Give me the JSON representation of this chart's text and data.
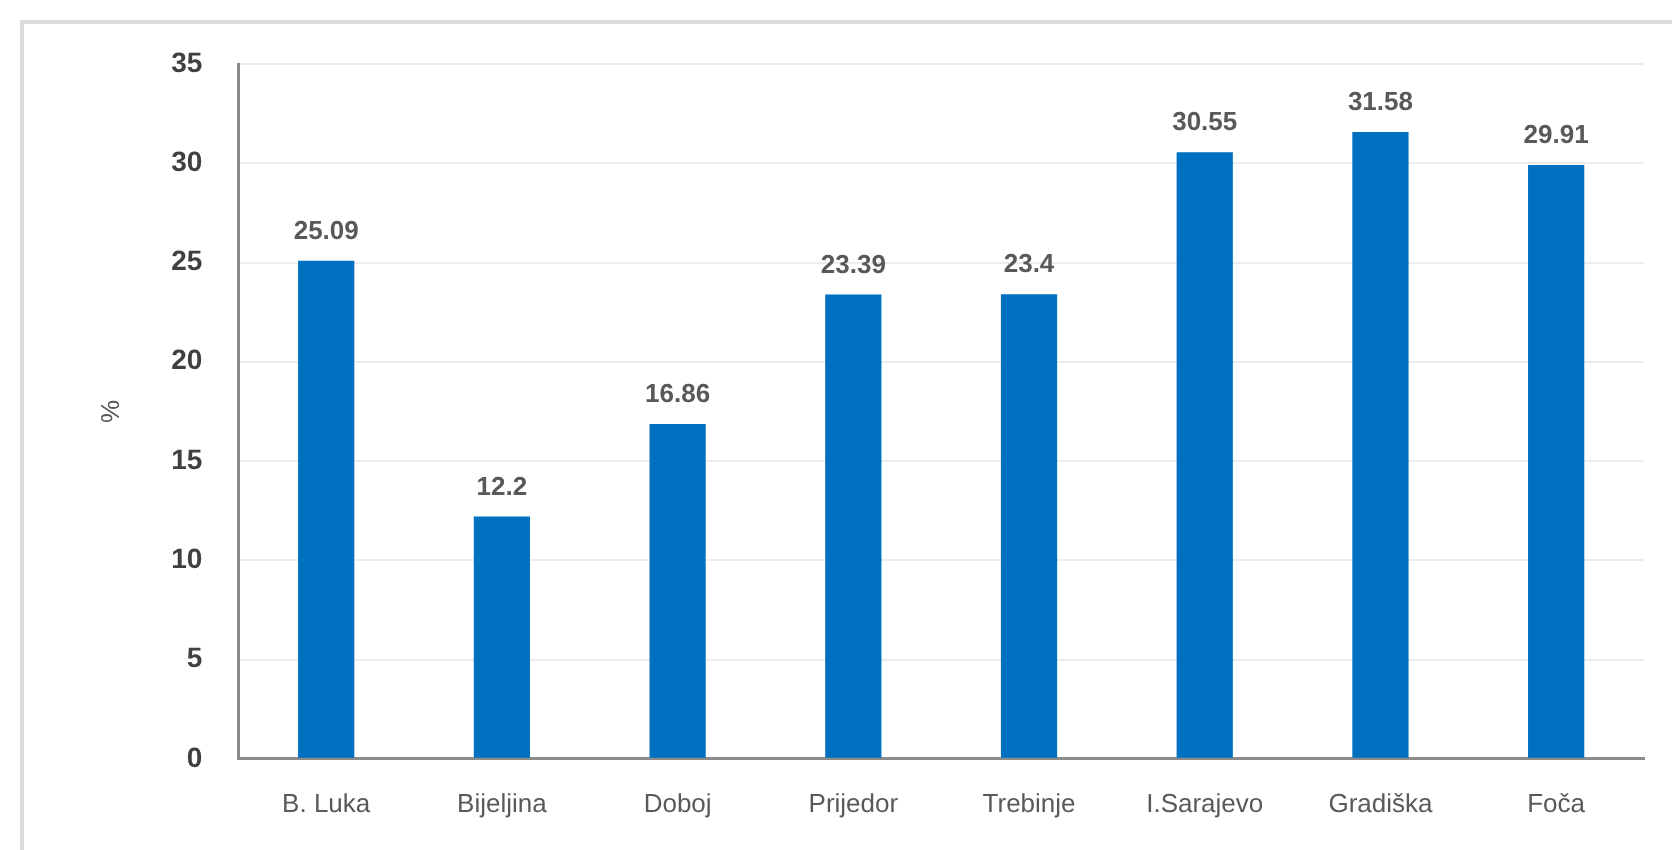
{
  "chart_data": {
    "type": "bar",
    "categories": [
      "B. Luka",
      "Bijeljina",
      "Doboj",
      "Prijedor",
      "Trebinje",
      "I.Sarajevo",
      "Gradiška",
      "Foča"
    ],
    "values": [
      25.09,
      12.2,
      16.86,
      23.39,
      23.4,
      30.55,
      31.58,
      29.91
    ],
    "color": "#0070c0",
    "ylabel": "%",
    "ylim": [
      0,
      35
    ],
    "yticks": [
      0,
      5,
      10,
      15,
      20,
      25,
      30,
      35
    ],
    "grid": "y",
    "legend": false,
    "data_labels": true
  }
}
